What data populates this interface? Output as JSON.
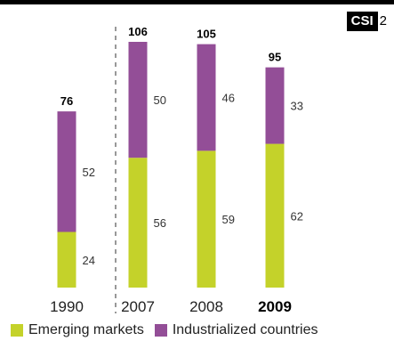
{
  "badge": {
    "tag": "CSI",
    "number": "2"
  },
  "chart_data": {
    "type": "bar",
    "stacked": true,
    "categories": [
      "1990",
      "2007",
      "2008",
      "2009"
    ],
    "highlight_category": "2009",
    "series": [
      {
        "name": "Emerging markets",
        "values": [
          24,
          56,
          59,
          62
        ],
        "color": "#c4d22a"
      },
      {
        "name": "Industrialized countries",
        "values": [
          52,
          50,
          46,
          33
        ],
        "color": "#934e97"
      }
    ],
    "totals": [
      76,
      106,
      105,
      95
    ],
    "ylim": [
      0,
      106
    ],
    "separator_after_category": "1990",
    "legend_position": "bottom"
  }
}
